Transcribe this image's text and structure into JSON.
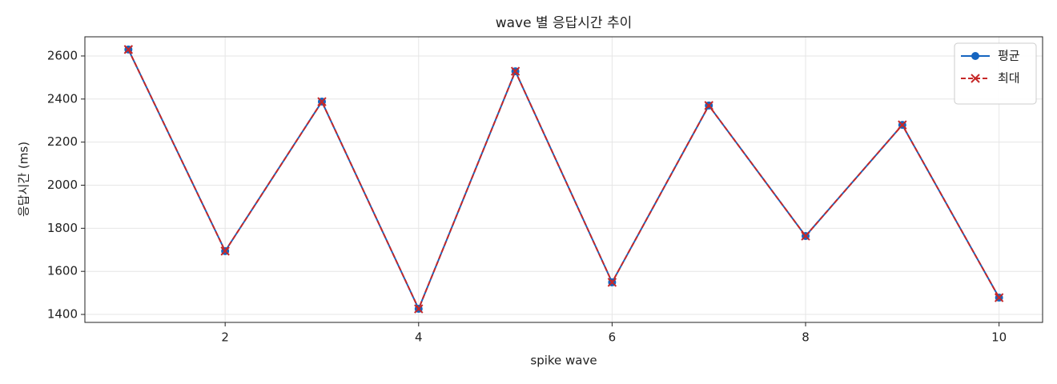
{
  "chart_data": {
    "type": "line",
    "title": "wave 별 응답시간 추이",
    "x_label": "spike wave",
    "y_label": "응답시간 (ms)",
    "x": [
      1,
      2,
      3,
      4,
      5,
      6,
      7,
      8,
      9,
      10
    ],
    "series": [
      {
        "name": "평균",
        "color": "#1565c0",
        "marker": "circle",
        "dashed": false,
        "values": [
          2630,
          1694,
          2388,
          1426,
          2529,
          1549,
          2370,
          1764,
          2280,
          1478
        ]
      },
      {
        "name": "최대",
        "color": "#c62828",
        "marker": "x",
        "dashed": true,
        "values": [
          2630,
          1694,
          2388,
          1426,
          2529,
          1549,
          2370,
          1764,
          2280,
          1478
        ]
      }
    ],
    "xlim": [
      0.55,
      10.45
    ],
    "xticks": [
      2,
      4,
      6,
      8,
      10
    ],
    "ylim": [
      1363,
      2689
    ],
    "yticks": [
      1400,
      1600,
      1800,
      2000,
      2200,
      2400,
      2600
    ],
    "grid": true,
    "legend": "upper right"
  }
}
